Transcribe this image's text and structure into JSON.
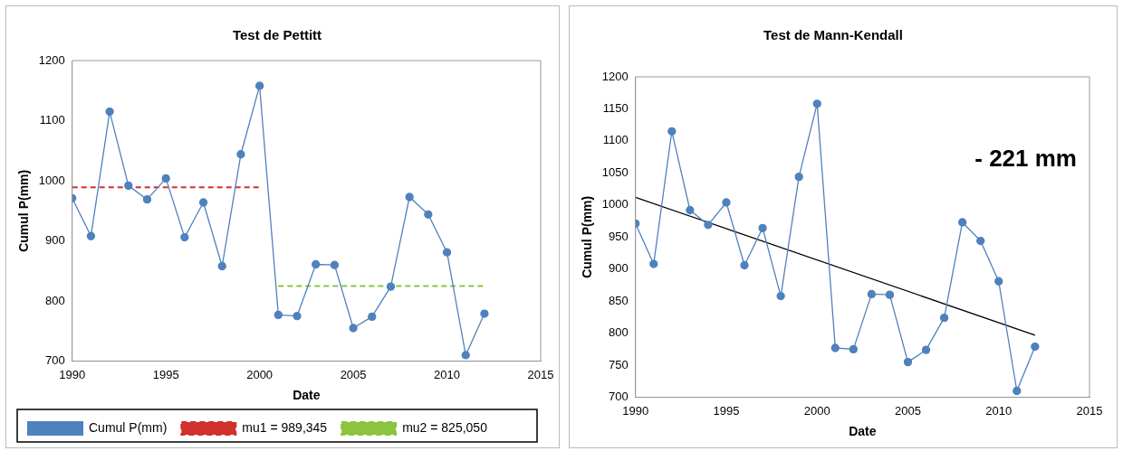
{
  "chart_data": [
    {
      "type": "line",
      "title": "Test de Pettitt",
      "xlabel": "Date",
      "ylabel": "Cumul P(mm)",
      "x": [
        1990,
        1991,
        1992,
        1993,
        1994,
        1995,
        1996,
        1997,
        1998,
        1999,
        2000,
        2001,
        2002,
        2003,
        2004,
        2005,
        2006,
        2007,
        2008,
        2009,
        2010,
        2011,
        2012
      ],
      "series": [
        {
          "name": "Cumul P(mm)",
          "color": "#4f81bd",
          "marker": "circle",
          "line_style": "solid",
          "values": [
            971,
            908,
            1115,
            992,
            969,
            1004,
            906,
            964,
            858,
            1044,
            1158,
            777,
            775,
            861,
            860,
            755,
            774,
            824,
            973,
            944,
            881,
            710,
            779
          ]
        },
        {
          "name": "mu1 = 989,345",
          "color": "#d0312d",
          "marker": "none",
          "line_style": "dashed",
          "x": [
            1990,
            2000
          ],
          "values": [
            989.345,
            989.345
          ]
        },
        {
          "name": "mu2 = 825,050",
          "color": "#8cc43f",
          "marker": "none",
          "line_style": "dashed",
          "x": [
            2001,
            2012
          ],
          "values": [
            825.05,
            825.05
          ]
        }
      ],
      "xlim": [
        1990,
        2015
      ],
      "xticks": [
        1990,
        1995,
        2000,
        2005,
        2010,
        2015
      ],
      "ylim": [
        700,
        1200
      ],
      "yticks": [
        700,
        800,
        900,
        1000,
        1100,
        1200
      ],
      "grid": false,
      "legend": "bottom"
    },
    {
      "type": "line",
      "title": "Test de Mann-Kendall",
      "xlabel": "Date",
      "ylabel": "Cumul P(mm)",
      "x": [
        1990,
        1991,
        1992,
        1993,
        1994,
        1995,
        1996,
        1997,
        1998,
        1999,
        2000,
        2001,
        2002,
        2003,
        2004,
        2005,
        2006,
        2007,
        2008,
        2009,
        2010,
        2011,
        2012
      ],
      "series": [
        {
          "color": "#4f81bd",
          "marker": "circle",
          "line_style": "solid",
          "values": [
            971,
            908,
            1115,
            992,
            969,
            1004,
            906,
            964,
            858,
            1044,
            1158,
            777,
            775,
            861,
            860,
            755,
            774,
            824,
            973,
            944,
            881,
            710,
            779
          ]
        },
        {
          "color": "#000000",
          "marker": "none",
          "line_style": "solid",
          "x": [
            1990,
            2012
          ],
          "values": [
            1012,
            797
          ]
        }
      ],
      "xlim": [
        1990,
        2015
      ],
      "xticks": [
        1990,
        1995,
        2000,
        2005,
        2010,
        2015
      ],
      "ylim": [
        700,
        1200
      ],
      "yticks": [
        700,
        750,
        800,
        850,
        900,
        950,
        1000,
        1050,
        1100,
        1150,
        1200
      ],
      "annotations": [
        "- 221 mm"
      ],
      "grid": false,
      "legend": false
    }
  ]
}
